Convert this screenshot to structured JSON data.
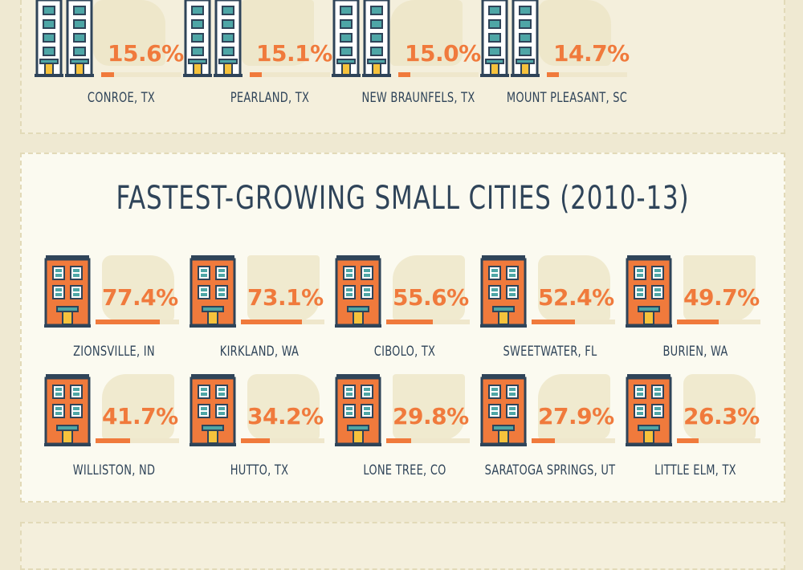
{
  "chart_data": [
    {
      "type": "bar",
      "title": "",
      "categories": [
        "Conroe, TX",
        "Pearland, TX",
        "New Braunfels, TX",
        "Mount Pleasant, SC"
      ],
      "values": [
        15.6,
        15.1,
        15.0,
        14.7
      ],
      "value_labels": [
        "15.6%",
        "15.1%",
        "15.0%",
        "14.7%"
      ],
      "states": [
        "Texas",
        "Texas",
        "Texas",
        "South Carolina"
      ],
      "unit": "%",
      "bar_max": 100
    },
    {
      "type": "bar",
      "title": "Fastest-Growing Small Cities (2010-13)",
      "categories": [
        "Zionsville, IN",
        "Kirkland, WA",
        "Cibolo, TX",
        "Sweetwater, FL",
        "Burien, WA",
        "Williston, ND",
        "Hutto, TX",
        "Lone Tree, CO",
        "Saratoga Springs, UT",
        "Little Elm, TX"
      ],
      "values": [
        77.4,
        73.1,
        55.6,
        52.4,
        49.7,
        41.7,
        34.2,
        29.8,
        27.9,
        26.3
      ],
      "value_labels": [
        "77.4%",
        "73.1%",
        "55.6%",
        "52.4%",
        "49.7%",
        "41.7%",
        "34.2%",
        "29.8%",
        "27.9%",
        "26.3%"
      ],
      "states": [
        "Indiana",
        "Washington",
        "Texas",
        "Florida",
        "Washington",
        "North Dakota",
        "Texas",
        "Colorado",
        "Utah",
        "Texas"
      ],
      "unit": "%",
      "bar_max": 100
    }
  ],
  "colors": {
    "accent": "#f07a3c",
    "navy": "#2f4459",
    "teal": "#4ea6a6",
    "door": "#f6c23c",
    "silhouette": "#ece4c4"
  }
}
